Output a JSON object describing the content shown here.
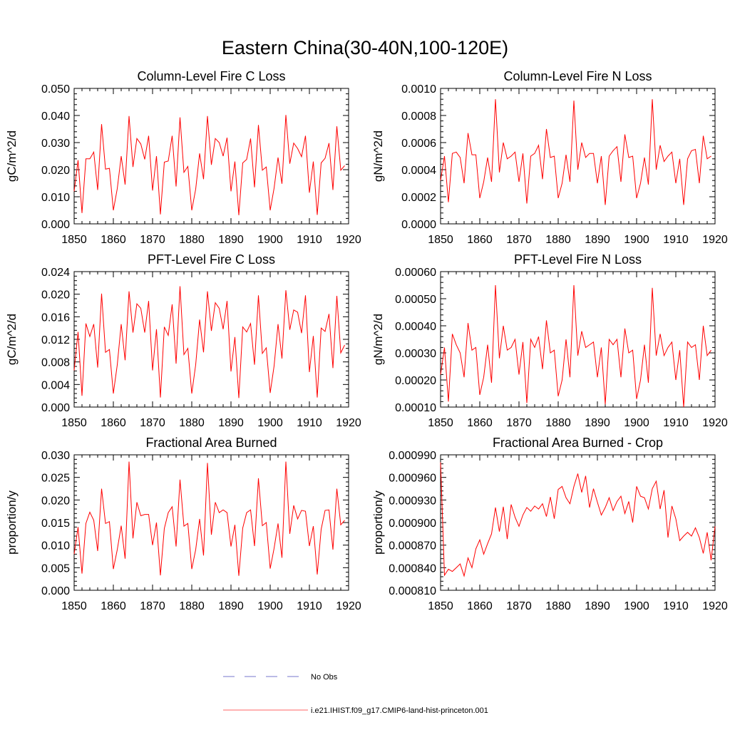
{
  "main_title": "Eastern China(30-40N,100-120E)",
  "legend": [
    {
      "label": "No Obs",
      "style": "dashed",
      "color": "#7777cc"
    },
    {
      "label": "i.e21.IHIST.f09_g17.CMIP6-land-hist-princeton.001",
      "style": "solid",
      "color": "#ff6666"
    }
  ],
  "chart_data": [
    {
      "type": "line",
      "title": "Column-Level Fire C Loss",
      "ylabel": "gC/m^2/d",
      "xlim": [
        1850,
        1920
      ],
      "ylim": [
        0,
        0.05
      ],
      "x_ticks": [
        "1850",
        "1860",
        "1870",
        "1880",
        "1890",
        "1900",
        "1910",
        "1920"
      ],
      "y_ticks": [
        "0.000",
        "0.010",
        "0.020",
        "0.030",
        "0.040",
        "0.050"
      ],
      "color": "#ff0000",
      "x_start": 1850,
      "values": [
        0.012,
        0.0235,
        0.004,
        0.024,
        0.024,
        0.0265,
        0.0125,
        0.0368,
        0.0202,
        0.0205,
        0.005,
        0.013,
        0.025,
        0.0145,
        0.0398,
        0.021,
        0.0315,
        0.0295,
        0.0238,
        0.0325,
        0.0123,
        0.025,
        0.0035,
        0.0228,
        0.0232,
        0.0325,
        0.0138,
        0.0393,
        0.019,
        0.0212,
        0.005,
        0.0128,
        0.026,
        0.0165,
        0.0398,
        0.0218,
        0.0315,
        0.03,
        0.025,
        0.0318,
        0.012,
        0.023,
        0.0032,
        0.0225,
        0.0238,
        0.0315,
        0.0135,
        0.0365,
        0.0198,
        0.021,
        0.005,
        0.0132,
        0.0245,
        0.0148,
        0.0402,
        0.0222,
        0.0298,
        0.0278,
        0.0248,
        0.0325,
        0.0115,
        0.023,
        0.0033,
        0.0225,
        0.0242,
        0.0298,
        0.0125,
        0.036,
        0.0198,
        0.0215
      ]
    },
    {
      "type": "line",
      "title": "Column-Level Fire N Loss",
      "ylabel": "gN/m^2/d",
      "xlim": [
        1850,
        1920
      ],
      "ylim": [
        0,
        0.001
      ],
      "x_ticks": [
        "1850",
        "1860",
        "1870",
        "1880",
        "1890",
        "1900",
        "1910",
        "1920"
      ],
      "y_ticks": [
        "0.0000",
        "0.0002",
        "0.0004",
        "0.0006",
        "0.0008",
        "0.0010"
      ],
      "color": "#ff0000",
      "x_start": 1850,
      "values": [
        0.00032,
        0.0005,
        0.00016,
        0.00052,
        0.00053,
        0.00049,
        0.0003,
        0.00067,
        0.00051,
        0.00051,
        0.00019,
        0.00031,
        0.00049,
        0.00031,
        0.00092,
        0.00038,
        0.0006,
        0.00048,
        0.0005,
        0.00053,
        0.00031,
        0.00052,
        0.00015,
        0.0005,
        0.00052,
        0.00058,
        0.00033,
        0.0007,
        0.00049,
        0.0005,
        0.00019,
        0.0003,
        0.00051,
        0.00031,
        0.00091,
        0.0004,
        0.0006,
        0.00049,
        0.00052,
        0.00052,
        0.0003,
        0.0005,
        0.00014,
        0.0005,
        0.00054,
        0.00057,
        0.00031,
        0.00066,
        0.00049,
        0.0005,
        0.00019,
        0.0003,
        0.00049,
        0.00029,
        0.00092,
        0.0004,
        0.00058,
        0.00046,
        0.0005,
        0.00053,
        0.0003,
        0.00048,
        0.00014,
        0.00048,
        0.00054,
        0.00055,
        0.0003,
        0.00065,
        0.00048,
        0.0005
      ]
    },
    {
      "type": "line",
      "title": "PFT-Level Fire C Loss",
      "ylabel": "gC/m^2/d",
      "xlim": [
        1850,
        1920
      ],
      "ylim": [
        0,
        0.024
      ],
      "x_ticks": [
        "1850",
        "1860",
        "1870",
        "1880",
        "1890",
        "1900",
        "1910",
        "1920"
      ],
      "y_ticks": [
        "0.000",
        "0.004",
        "0.008",
        "0.012",
        "0.016",
        "0.020",
        "0.024"
      ],
      "color": "#ff0000",
      "x_start": 1850,
      "values": [
        0.0065,
        0.0133,
        0.002,
        0.0148,
        0.0125,
        0.0147,
        0.007,
        0.0201,
        0.0097,
        0.0102,
        0.0024,
        0.0075,
        0.0147,
        0.0083,
        0.0205,
        0.0132,
        0.0183,
        0.0175,
        0.0132,
        0.0188,
        0.0065,
        0.0138,
        0.0017,
        0.0142,
        0.0127,
        0.0182,
        0.0077,
        0.0214,
        0.0093,
        0.0104,
        0.0024,
        0.0075,
        0.0155,
        0.0097,
        0.0205,
        0.0135,
        0.0185,
        0.0175,
        0.0138,
        0.0188,
        0.0063,
        0.0124,
        0.0016,
        0.0142,
        0.0133,
        0.0148,
        0.0075,
        0.0198,
        0.0095,
        0.0105,
        0.0025,
        0.0073,
        0.0147,
        0.0086,
        0.0207,
        0.0137,
        0.0172,
        0.0168,
        0.0131,
        0.0198,
        0.0062,
        0.0126,
        0.0017,
        0.014,
        0.0134,
        0.0165,
        0.0069,
        0.0197,
        0.0096,
        0.011
      ]
    },
    {
      "type": "line",
      "title": "PFT-Level Fire N Loss",
      "ylabel": "gN/m^2/d",
      "xlim": [
        1850,
        1920
      ],
      "ylim": [
        0.0001,
        0.0006
      ],
      "x_ticks": [
        "1850",
        "1860",
        "1870",
        "1880",
        "1890",
        "1900",
        "1910",
        "1920"
      ],
      "y_ticks": [
        "0.00010",
        "0.00020",
        "0.00030",
        "0.00040",
        "0.00050",
        "0.00060"
      ],
      "color": "#ff0000",
      "x_start": 1850,
      "values": [
        0.00022,
        0.00032,
        0.00012,
        0.00037,
        0.00033,
        0.0003,
        0.00021,
        0.00041,
        0.00031,
        0.00032,
        0.000145,
        0.00021,
        0.00033,
        0.00019,
        0.00055,
        0.00028,
        0.0004,
        0.00031,
        0.00032,
        0.00035,
        0.00022,
        0.00034,
        0.000115,
        0.00035,
        0.00032,
        0.00036,
        0.00024,
        0.00042,
        0.0003,
        0.00031,
        0.00014,
        0.0002,
        0.00035,
        0.00021,
        0.00055,
        0.00029,
        0.00038,
        0.00032,
        0.00033,
        0.00034,
        0.00021,
        0.00032,
        0.00011,
        0.00035,
        0.00033,
        0.00035,
        0.00021,
        0.00039,
        0.0003,
        0.00031,
        0.00013,
        0.0002,
        0.00033,
        0.00019,
        0.00054,
        0.00029,
        0.00037,
        0.00029,
        0.00032,
        0.00034,
        0.0002,
        0.00031,
        0.0001,
        0.00034,
        0.00032,
        0.00033,
        0.0002,
        0.0004,
        0.00029,
        0.00031
      ]
    },
    {
      "type": "line",
      "title": "Fractional Area Burned",
      "ylabel": "proportion/y",
      "xlim": [
        1850,
        1920
      ],
      "ylim": [
        0,
        0.03
      ],
      "x_ticks": [
        "1850",
        "1860",
        "1870",
        "1880",
        "1890",
        "1900",
        "1910",
        "1920"
      ],
      "y_ticks": [
        "0.000",
        "0.005",
        "0.010",
        "0.015",
        "0.020",
        "0.025",
        "0.030"
      ],
      "color": "#ff0000",
      "x_start": 1850,
      "values": [
        0.008,
        0.014,
        0.0037,
        0.0148,
        0.0173,
        0.0155,
        0.0087,
        0.0225,
        0.0148,
        0.0152,
        0.0047,
        0.009,
        0.0143,
        0.007,
        0.0285,
        0.0115,
        0.0195,
        0.0165,
        0.0168,
        0.0168,
        0.01,
        0.015,
        0.0033,
        0.0137,
        0.0172,
        0.0185,
        0.0097,
        0.0245,
        0.0142,
        0.0148,
        0.0047,
        0.009,
        0.0158,
        0.0077,
        0.0282,
        0.0123,
        0.0195,
        0.0172,
        0.0178,
        0.0172,
        0.0097,
        0.0145,
        0.0032,
        0.0138,
        0.0172,
        0.0178,
        0.0098,
        0.0248,
        0.0143,
        0.015,
        0.0048,
        0.0093,
        0.0148,
        0.0072,
        0.0285,
        0.0125,
        0.0188,
        0.0158,
        0.0177,
        0.0175,
        0.0098,
        0.0142,
        0.0035,
        0.0135,
        0.0177,
        0.0178,
        0.009,
        0.0225,
        0.0145,
        0.0155
      ]
    },
    {
      "type": "line",
      "title": "Fractional Area Burned - Crop",
      "ylabel": "proportion/y",
      "xlim": [
        1850,
        1920
      ],
      "ylim": [
        0.00081,
        0.00099
      ],
      "x_ticks": [
        "1850",
        "1860",
        "1870",
        "1880",
        "1890",
        "1900",
        "1910",
        "1920"
      ],
      "y_ticks": [
        "0.000810",
        "0.000840",
        "0.000870",
        "0.000900",
        "0.000930",
        "0.000960",
        "0.000990"
      ],
      "color": "#ff0000",
      "x_start": 1850,
      "values": [
        0.00098,
        0.00083,
        0.000838,
        0.000835,
        0.00084,
        0.000845,
        0.000829,
        0.000853,
        0.00084,
        0.000865,
        0.000877,
        0.000858,
        0.000872,
        0.000885,
        0.00092,
        0.000888,
        0.000921,
        0.000878,
        0.000924,
        0.000907,
        0.000895,
        0.00091,
        0.00092,
        0.000915,
        0.000922,
        0.000918,
        0.000925,
        0.000908,
        0.000934,
        0.000905,
        0.000944,
        0.000948,
        0.000933,
        0.000925,
        0.000948,
        0.000965,
        0.00094,
        0.000962,
        0.00092,
        0.000945,
        0.000927,
        0.00091,
        0.00092,
        0.000933,
        0.000916,
        0.000928,
        0.000935,
        0.000912,
        0.000928,
        0.0009,
        0.000948,
        0.000935,
        0.000933,
        0.000918,
        0.000945,
        0.000955,
        0.000918,
        0.000943,
        0.00088,
        0.000922,
        0.000905,
        0.000876,
        0.000882,
        0.000887,
        0.000882,
        0.000893,
        0.00088,
        0.000859,
        0.000887,
        0.00085,
        0.000895
      ]
    }
  ]
}
